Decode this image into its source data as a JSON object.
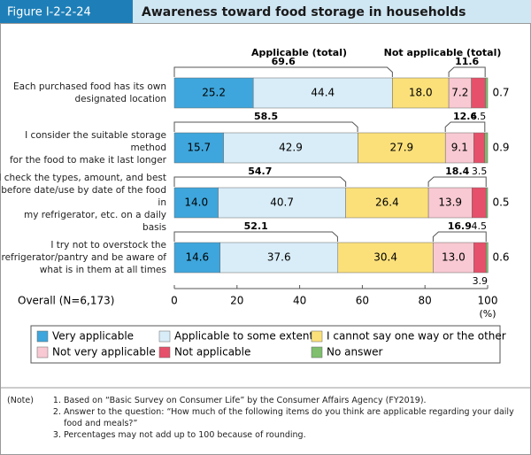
{
  "chart_data": {
    "type": "stacked-bar-horizontal",
    "figure_label": "Figure I-2-2-24",
    "title": "Awareness toward food storage in households",
    "categories": [
      "Each purchased food has its own\ndesignated location",
      "I consider the suitable storage method\nfor the food to make it last longer",
      "I check the types, amount, and best\nbefore date/use by date of the food in\nmy refrigerator, etc. on a daily basis",
      "I try not to overstock the\nrefrigerator/pantry and be aware of\nwhat is in them at all times"
    ],
    "series": [
      {
        "name": "Very applicable",
        "color": "#3ea6dc",
        "values": [
          25.2,
          15.7,
          14.0,
          14.6
        ],
        "value_labels": [
          "25.2",
          "15.7",
          "14.0",
          "14.6"
        ]
      },
      {
        "name": "Applicable to some extent",
        "color": "#d9edf8",
        "values": [
          44.4,
          42.9,
          40.7,
          37.6
        ],
        "value_labels": [
          "44.4",
          "42.9",
          "40.7",
          "37.6"
        ]
      },
      {
        "name": "I cannot say one way or the other",
        "color": "#fbe07a",
        "values": [
          18.0,
          27.9,
          26.4,
          30.4
        ],
        "value_labels": [
          "18.0",
          "27.9",
          "26.4",
          "30.4"
        ]
      },
      {
        "name": "Not very applicable",
        "color": "#f8c9d2",
        "values": [
          7.2,
          9.1,
          13.9,
          13.0
        ],
        "value_labels": [
          "7.2",
          "9.1",
          "13.9",
          "13.0"
        ]
      },
      {
        "name": "Not applicable",
        "color": "#e6506a",
        "values": [
          4.5,
          3.5,
          4.5,
          3.9
        ],
        "value_labels": [
          "4.5",
          "3.5",
          "4.5",
          "3.9"
        ]
      },
      {
        "name": "No answer",
        "color": "#7fbf6e",
        "values": [
          0.7,
          0.9,
          0.5,
          0.6
        ],
        "value_labels": [
          "0.7",
          "0.9",
          "0.5",
          "0.6"
        ]
      }
    ],
    "applicable_total_label": "Applicable (total)",
    "applicable_totals": [
      69.6,
      58.5,
      54.7,
      52.1
    ],
    "not_applicable_total_label": "Not applicable (total)",
    "not_applicable_totals": [
      11.6,
      12.6,
      18.4,
      16.9
    ],
    "axis_caption": "Overall (N=6,173)",
    "xlim": [
      0,
      100
    ],
    "xticks": [
      0,
      20,
      40,
      60,
      80,
      100
    ],
    "x_unit": "(%)",
    "legend": "bottom"
  },
  "notes": {
    "label": "(Note)",
    "items": [
      "Based on “Basic Survey on Consumer Life” by the Consumer Affairs Agency (FY2019).",
      "Answer to the question: “How much of the following items do you think are applicable regarding your daily food and meals?”",
      "Percentages may not add up to 100 because of rounding."
    ]
  }
}
